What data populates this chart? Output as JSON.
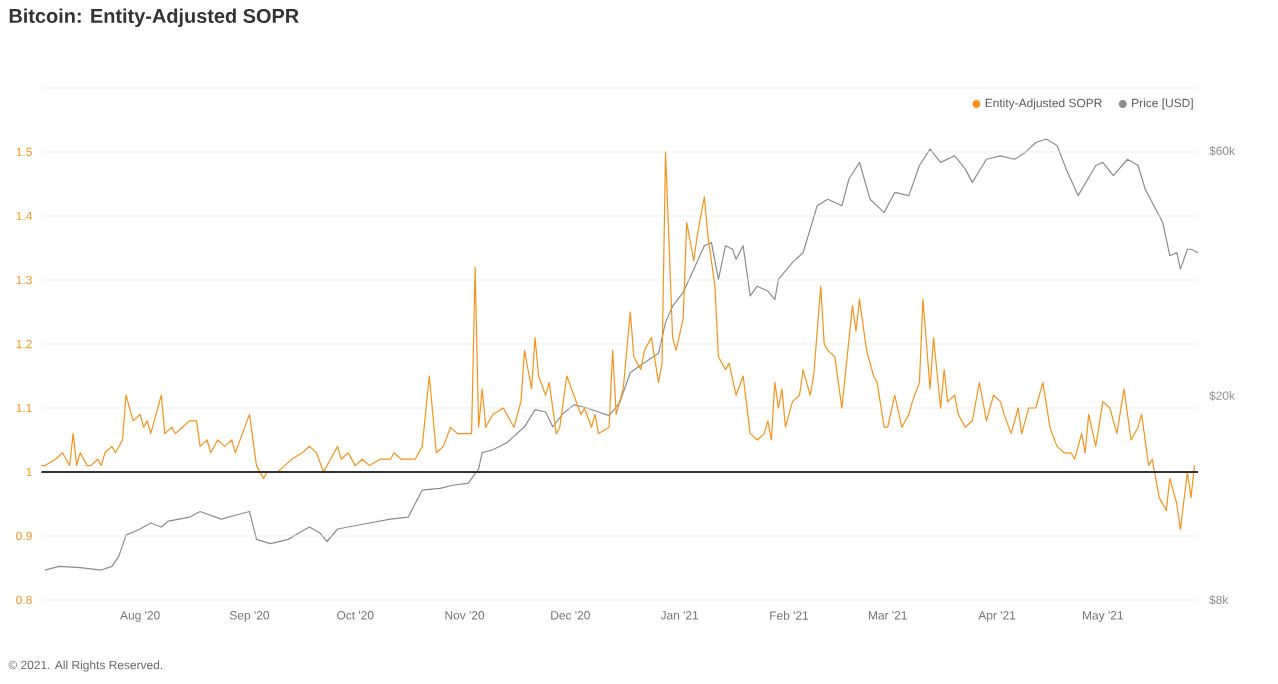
{
  "chart_data": {
    "type": "line",
    "title": "Bitcoin: Entity-Adjusted SOPR",
    "annotations": [
      "© 2021. All Rights Reserved."
    ],
    "xlim": [
      "2020-07-04",
      "2021-05-28"
    ],
    "xticks": [
      {
        "value": "2020-08-01",
        "label": "Aug '20"
      },
      {
        "value": "2020-09-01",
        "label": "Sep '20"
      },
      {
        "value": "2020-10-01",
        "label": "Oct '20"
      },
      {
        "value": "2020-11-01",
        "label": "Nov '20"
      },
      {
        "value": "2020-12-01",
        "label": "Dec '20"
      },
      {
        "value": "2021-01-01",
        "label": "Jan '21"
      },
      {
        "value": "2021-02-01",
        "label": "Feb '21"
      },
      {
        "value": "2021-03-01",
        "label": "Mar '21"
      },
      {
        "value": "2021-04-01",
        "label": "Apr '21"
      },
      {
        "value": "2021-05-01",
        "label": "May '21"
      }
    ],
    "ylim": [
      0.8,
      1.6
    ],
    "yticks": [
      0.8,
      0.9,
      1,
      1.1,
      1.2,
      1.3,
      1.4,
      1.5,
      {
        "value": 1.6,
        "label": null
      }
    ],
    "y2lim": [
      8000,
      79600
    ],
    "y2ticks": [
      {
        "value": 8000,
        "label": "$8k"
      },
      {
        "value": 20000,
        "label": "$20k"
      },
      {
        "value": 60000,
        "label": "$60k"
      }
    ],
    "log": "y2",
    "grid": "y",
    "legend": "top right",
    "ref_lines": [
      {
        "axis": "y",
        "value": 1,
        "color": "#333333"
      }
    ],
    "series": [
      {
        "name": "Entity-Adjusted SOPR",
        "color": "#f7931a",
        "x": [
          "2020-07-04",
          "2020-07-05",
          "2020-07-08",
          "2020-07-10",
          "2020-07-11",
          "2020-07-12",
          "2020-07-13",
          "2020-07-14",
          "2020-07-15",
          "2020-07-17",
          "2020-07-18",
          "2020-07-20",
          "2020-07-21",
          "2020-07-22",
          "2020-07-24",
          "2020-07-25",
          "2020-07-27",
          "2020-07-28",
          "2020-07-30",
          "2020-08-01",
          "2020-08-02",
          "2020-08-03",
          "2020-08-04",
          "2020-08-07",
          "2020-08-08",
          "2020-08-10",
          "2020-08-11",
          "2020-08-13",
          "2020-08-15",
          "2020-08-17",
          "2020-08-18",
          "2020-08-20",
          "2020-08-21",
          "2020-08-23",
          "2020-08-25",
          "2020-08-27",
          "2020-08-28",
          "2020-08-30",
          "2020-09-01",
          "2020-09-03",
          "2020-09-05",
          "2020-09-06",
          "2020-09-09",
          "2020-09-11",
          "2020-09-13",
          "2020-09-16",
          "2020-09-18",
          "2020-09-20",
          "2020-09-22",
          "2020-09-25",
          "2020-09-26",
          "2020-09-27",
          "2020-09-29",
          "2020-10-01",
          "2020-10-03",
          "2020-10-05",
          "2020-10-08",
          "2020-10-11",
          "2020-10-12",
          "2020-10-14",
          "2020-10-18",
          "2020-10-20",
          "2020-10-22",
          "2020-10-24",
          "2020-10-26",
          "2020-10-28",
          "2020-10-30",
          "2020-10-31",
          "2020-11-03",
          "2020-11-04",
          "2020-11-05",
          "2020-11-06",
          "2020-11-07",
          "2020-11-09",
          "2020-11-12",
          "2020-11-13",
          "2020-11-15",
          "2020-11-17",
          "2020-11-18",
          "2020-11-20",
          "2020-11-21",
          "2020-11-22",
          "2020-11-24",
          "2020-11-25",
          "2020-11-27",
          "2020-11-28",
          "2020-11-30",
          "2020-12-02",
          "2020-12-04",
          "2020-12-05",
          "2020-12-07",
          "2020-12-08",
          "2020-12-09",
          "2020-12-12",
          "2020-12-13",
          "2020-12-14",
          "2020-12-16",
          "2020-12-18",
          "2020-12-19",
          "2020-12-21",
          "2020-12-22",
          "2020-12-24",
          "2020-12-26",
          "2020-12-27",
          "2020-12-28",
          "2020-12-30",
          "2020-12-31",
          "2021-01-02",
          "2021-01-03",
          "2021-01-05",
          "2021-01-06",
          "2021-01-08",
          "2021-01-09",
          "2021-01-11",
          "2021-01-12",
          "2021-01-14",
          "2021-01-15",
          "2021-01-17",
          "2021-01-19",
          "2021-01-21",
          "2021-01-23",
          "2021-01-25",
          "2021-01-26",
          "2021-01-27",
          "2021-01-28",
          "2021-01-29",
          "2021-01-30",
          "2021-01-31",
          "2021-02-02",
          "2021-02-04",
          "2021-02-05",
          "2021-02-07",
          "2021-02-08",
          "2021-02-10",
          "2021-02-11",
          "2021-02-12",
          "2021-02-14",
          "2021-02-16",
          "2021-02-19",
          "2021-02-20",
          "2021-02-21",
          "2021-02-23",
          "2021-02-25",
          "2021-02-26",
          "2021-02-28",
          "2021-03-01",
          "2021-03-03",
          "2021-03-05",
          "2021-03-07",
          "2021-03-08",
          "2021-03-10",
          "2021-03-11",
          "2021-03-13",
          "2021-03-14",
          "2021-03-16",
          "2021-03-17",
          "2021-03-18",
          "2021-03-20",
          "2021-03-21",
          "2021-03-23",
          "2021-03-25",
          "2021-03-27",
          "2021-03-29",
          "2021-03-31",
          "2021-04-02",
          "2021-04-03",
          "2021-04-05",
          "2021-04-07",
          "2021-04-08",
          "2021-04-10",
          "2021-04-12",
          "2021-04-14",
          "2021-04-16",
          "2021-04-18",
          "2021-04-20",
          "2021-04-22",
          "2021-04-23",
          "2021-04-25",
          "2021-04-26",
          "2021-04-27",
          "2021-04-29",
          "2021-05-01",
          "2021-05-03",
          "2021-05-05",
          "2021-05-07",
          "2021-05-09",
          "2021-05-11",
          "2021-05-12",
          "2021-05-14",
          "2021-05-15",
          "2021-05-17",
          "2021-05-19",
          "2021-05-20",
          "2021-05-22",
          "2021-05-23",
          "2021-05-25",
          "2021-05-26",
          "2021-05-27"
        ],
        "values": [
          1.01,
          1.01,
          1.02,
          1.03,
          1.02,
          1.01,
          1.06,
          1.01,
          1.03,
          1.01,
          1.01,
          1.02,
          1.01,
          1.03,
          1.04,
          1.03,
          1.05,
          1.12,
          1.08,
          1.09,
          1.07,
          1.08,
          1.06,
          1.12,
          1.06,
          1.07,
          1.06,
          1.07,
          1.08,
          1.08,
          1.04,
          1.05,
          1.03,
          1.05,
          1.04,
          1.05,
          1.03,
          1.06,
          1.09,
          1.01,
          0.99,
          1,
          1,
          1.01,
          1.02,
          1.03,
          1.04,
          1.03,
          1,
          1.03,
          1.04,
          1.02,
          1.03,
          1.01,
          1.02,
          1.01,
          1.02,
          1.02,
          1.03,
          1.02,
          1.02,
          1.04,
          1.15,
          1.03,
          1.04,
          1.07,
          1.06,
          1.06,
          1.06,
          1.32,
          1.07,
          1.13,
          1.07,
          1.09,
          1.1,
          1.09,
          1.07,
          1.11,
          1.19,
          1.13,
          1.21,
          1.15,
          1.12,
          1.14,
          1.06,
          1.07,
          1.15,
          1.12,
          1.09,
          1.1,
          1.07,
          1.09,
          1.06,
          1.07,
          1.19,
          1.09,
          1.13,
          1.25,
          1.18,
          1.16,
          1.19,
          1.21,
          1.14,
          1.17,
          1.5,
          1.21,
          1.19,
          1.24,
          1.39,
          1.33,
          1.37,
          1.43,
          1.37,
          1.29,
          1.18,
          1.16,
          1.17,
          1.12,
          1.15,
          1.06,
          1.05,
          1.06,
          1.08,
          1.05,
          1.14,
          1.1,
          1.13,
          1.07,
          1.11,
          1.12,
          1.16,
          1.12,
          1.15,
          1.29,
          1.2,
          1.19,
          1.18,
          1.1,
          1.26,
          1.22,
          1.27,
          1.19,
          1.15,
          1.14,
          1.07,
          1.07,
          1.12,
          1.07,
          1.09,
          1.11,
          1.14,
          1.27,
          1.13,
          1.21,
          1.1,
          1.16,
          1.11,
          1.12,
          1.09,
          1.07,
          1.08,
          1.14,
          1.08,
          1.12,
          1.11,
          1.09,
          1.06,
          1.1,
          1.06,
          1.1,
          1.1,
          1.14,
          1.07,
          1.04,
          1.03,
          1.03,
          1.02,
          1.06,
          1.03,
          1.09,
          1.04,
          1.11,
          1.1,
          1.06,
          1.13,
          1.05,
          1.07,
          1.09,
          1.01,
          1.02,
          0.96,
          0.94,
          0.99,
          0.95,
          0.91,
          1,
          0.96,
          1.01
        ]
      },
      {
        "name": "Price [USD]",
        "color": "#8c8c8c",
        "axis": "y2",
        "x": [
          "2020-07-05",
          "2020-07-09",
          "2020-07-15",
          "2020-07-21",
          "2020-07-24",
          "2020-07-26",
          "2020-07-28",
          "2020-08-01",
          "2020-08-04",
          "2020-08-07",
          "2020-08-09",
          "2020-08-15",
          "2020-08-18",
          "2020-08-24",
          "2020-08-28",
          "2020-09-01",
          "2020-09-03",
          "2020-09-07",
          "2020-09-12",
          "2020-09-15",
          "2020-09-18",
          "2020-09-21",
          "2020-09-23",
          "2020-09-26",
          "2020-09-29",
          "2020-10-05",
          "2020-10-11",
          "2020-10-16",
          "2020-10-20",
          "2020-10-25",
          "2020-10-29",
          "2020-11-02",
          "2020-11-05",
          "2020-11-06",
          "2020-11-09",
          "2020-11-13",
          "2020-11-18",
          "2020-11-21",
          "2020-11-24",
          "2020-11-26",
          "2020-11-29",
          "2020-12-02",
          "2020-12-05",
          "2020-12-09",
          "2020-12-12",
          "2020-12-15",
          "2020-12-18",
          "2020-12-22",
          "2020-12-26",
          "2020-12-28",
          "2020-12-30",
          "2021-01-02",
          "2021-01-05",
          "2021-01-08",
          "2021-01-10",
          "2021-01-12",
          "2021-01-14",
          "2021-01-16",
          "2021-01-17",
          "2021-01-19",
          "2021-01-21",
          "2021-01-23",
          "2021-01-26",
          "2021-01-28",
          "2021-01-29",
          "2021-02-02",
          "2021-02-05",
          "2021-02-09",
          "2021-02-12",
          "2021-02-16",
          "2021-02-18",
          "2021-02-21",
          "2021-02-24",
          "2021-02-28",
          "2021-03-03",
          "2021-03-07",
          "2021-03-10",
          "2021-03-13",
          "2021-03-16",
          "2021-03-20",
          "2021-03-23",
          "2021-03-25",
          "2021-03-29",
          "2021-04-02",
          "2021-04-06",
          "2021-04-09",
          "2021-04-12",
          "2021-04-15",
          "2021-04-18",
          "2021-04-21",
          "2021-04-24",
          "2021-04-29",
          "2021-05-01",
          "2021-05-04",
          "2021-05-08",
          "2021-05-11",
          "2021-05-13",
          "2021-05-15",
          "2021-05-18",
          "2021-05-20",
          "2021-05-22",
          "2021-05-23",
          "2021-05-25",
          "2021-05-26",
          "2021-05-28"
        ],
        "values": [
          9150,
          9300,
          9250,
          9150,
          9300,
          9750,
          10700,
          11000,
          11300,
          11100,
          11400,
          11600,
          11900,
          11500,
          11700,
          11900,
          10500,
          10300,
          10500,
          10800,
          11100,
          10800,
          10400,
          11000,
          11100,
          11300,
          11500,
          11600,
          13100,
          13200,
          13400,
          13500,
          14400,
          15500,
          15700,
          16200,
          17400,
          18800,
          18600,
          17400,
          18500,
          19200,
          19000,
          18600,
          18300,
          19400,
          22200,
          23200,
          24200,
          27800,
          29900,
          31800,
          35300,
          39200,
          39800,
          33700,
          39200,
          38600,
          36900,
          39200,
          31300,
          32700,
          32000,
          30800,
          33700,
          36400,
          38000,
          46900,
          48300,
          46900,
          52900,
          57000,
          48300,
          45500,
          49800,
          49100,
          56200,
          60500,
          57000,
          58700,
          55300,
          52100,
          57800,
          58700,
          57800,
          59600,
          62300,
          63300,
          61500,
          54500,
          49100,
          56200,
          57000,
          53700,
          57800,
          56200,
          50600,
          47600,
          43500,
          37500,
          38000,
          35300,
          38600,
          38600,
          38000
        ]
      }
    ]
  }
}
